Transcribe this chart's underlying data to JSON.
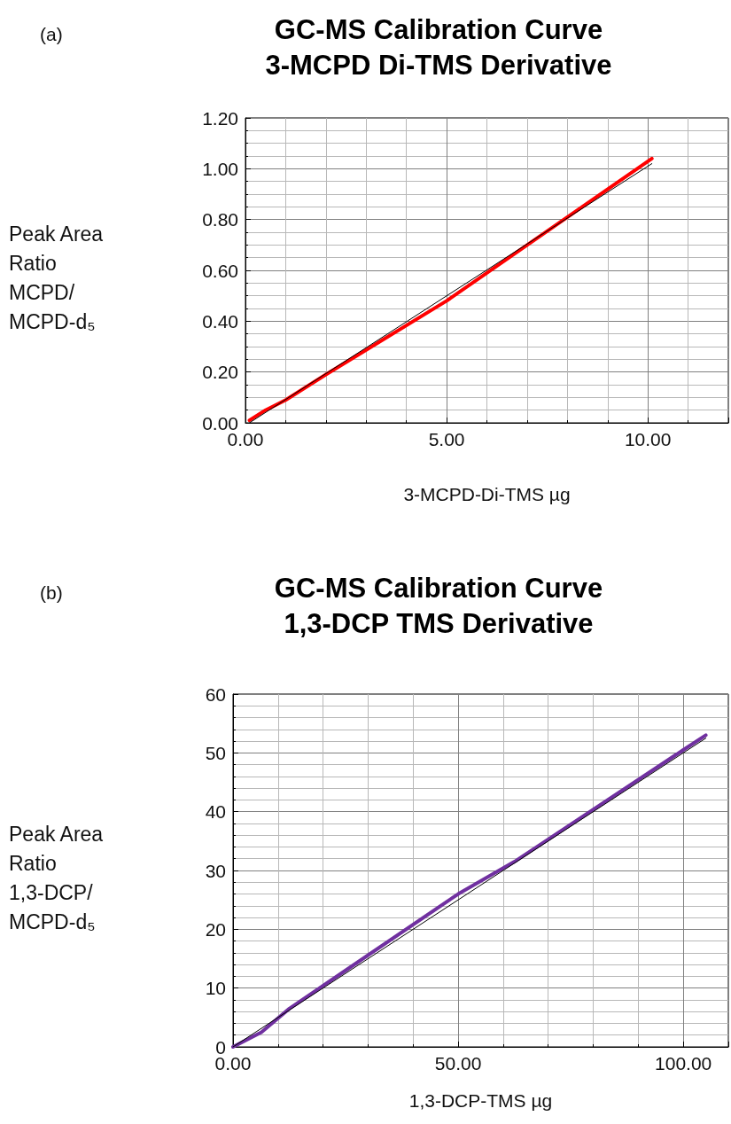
{
  "chart_data": [
    {
      "type": "line",
      "title": "GC-MS Calibration Curve\n3-MCPD Di-TMS Derivative",
      "xlabel": "3-MCPD-Di-TMS µg",
      "ylabel": "Peak Area\nRatio\nMCPD/\nMCPD-d₅",
      "annotations": [
        "(a)"
      ],
      "series": [
        {
          "color": "#ff0000",
          "x": [
            0.1,
            0.5,
            1,
            2,
            5,
            10.1
          ],
          "values": [
            0.01,
            0.05,
            0.09,
            0.19,
            0.48,
            1.04
          ]
        },
        {
          "color": "#000000",
          "x": [
            0.1,
            10.1
          ],
          "values": [
            0.0,
            1.02
          ]
        }
      ],
      "xlim": [
        0,
        12
      ],
      "xticks": [
        {
          "value": 0,
          "label": "0.00"
        },
        {
          "value": 5,
          "label": "5.00"
        },
        {
          "value": 10,
          "label": "10.00"
        }
      ],
      "ylim": [
        0,
        1.2
      ],
      "yticks": [
        {
          "value": 0,
          "label": "0.00"
        },
        {
          "value": 0.2,
          "label": "0.20"
        },
        {
          "value": 0.4,
          "label": "0.40"
        },
        {
          "value": 0.6,
          "label": "0.60"
        },
        {
          "value": 0.8,
          "label": "0.80"
        },
        {
          "value": 1.0,
          "label": "1.00"
        },
        {
          "value": 1.2,
          "label": "1.20"
        }
      ],
      "grid": true,
      "marker": "none",
      "line_style": "solid"
    },
    {
      "type": "line",
      "title": "GC-MS Calibration Curve\n1,3-DCP TMS Derivative",
      "xlabel": "1,3-DCP-TMS µg",
      "ylabel": "Peak Area\nRatio\n1,3-DCP/\nMCPD-d₅",
      "annotations": [
        "(b)"
      ],
      "series": [
        {
          "color": "#7030a0",
          "x": [
            0,
            6.3,
            12.5,
            25,
            50,
            62.5,
            100,
            105
          ],
          "values": [
            0,
            2.5,
            6.5,
            13,
            26,
            31.5,
            50.5,
            53
          ]
        },
        {
          "color": "#000000",
          "x": [
            0,
            105
          ],
          "values": [
            0,
            52.5
          ]
        }
      ],
      "xlim": [
        0,
        110
      ],
      "xticks": [
        {
          "value": 0,
          "label": "0.00"
        },
        {
          "value": 50,
          "label": "50.00"
        },
        {
          "value": 100,
          "label": "100.00"
        }
      ],
      "ylim": [
        0,
        60
      ],
      "yticks": [
        0,
        10,
        20,
        30,
        40,
        50,
        60
      ],
      "grid": true,
      "marker": "none",
      "line_style": "solid"
    }
  ]
}
